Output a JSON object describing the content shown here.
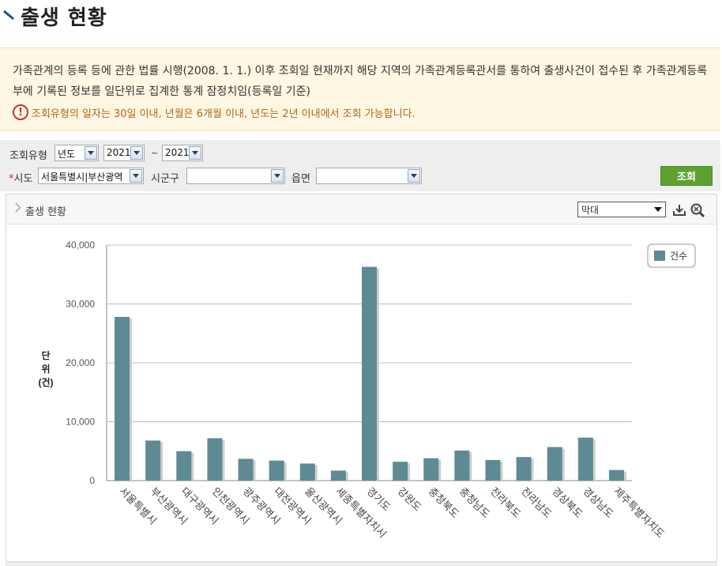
{
  "page": {
    "title": "출생 현황"
  },
  "notice": {
    "text": "가족관계의 등록 등에 관한 법률 시행(2008. 1. 1.) 이후 조회일 현재까지 해당 지역의 가족관계등록관서를 통하여 출생사건이 접수된 후 가족관계등록부에 기록된 정보를 일단위로 집계한 통계 잠정치임(등록일 기준)",
    "warn_icon": "!",
    "warning": "조회유형의 일자는 30일 이내, 년월은 6개월 이내, 년도는 2년 이내에서 조회 가능합니다."
  },
  "filter": {
    "query_type_label": "조회유형",
    "query_type_value": "년도",
    "year_from": "2021",
    "range_sep": "~",
    "year_to": "2021",
    "required_mark": "*",
    "sido_label": "시도",
    "sido_value": "서울특별시|부산광역",
    "sigungu_label": "시군구",
    "sigungu_value": "",
    "eupmyeon_label": "읍면",
    "eupmyeon_value": "",
    "search_button": "조회"
  },
  "panel": {
    "title": "출생 현황",
    "chart_type_value": "막대",
    "icons": [
      "download-icon",
      "zoom-icon"
    ]
  },
  "chart_data": {
    "type": "bar",
    "title": "",
    "ylabel": "단\n위\n(건)",
    "ylim": [
      0,
      40000
    ],
    "yticks": [
      0,
      10000,
      20000,
      30000,
      40000
    ],
    "ytick_labels": [
      "0",
      "10,000",
      "20,000",
      "30,000",
      "40,000"
    ],
    "grid": true,
    "legend_position": "top-right",
    "bar_color": "#5e8a93",
    "categories": [
      "서울특별시",
      "부산광역시",
      "대구광역시",
      "인천광역시",
      "광주광역시",
      "대전광역시",
      "울산광역시",
      "세종특별자치시",
      "경기도",
      "강원도",
      "충청북도",
      "충청남도",
      "전라북도",
      "전라남도",
      "경상북도",
      "경상남도",
      "제주특별자치도"
    ],
    "series": [
      {
        "name": "건수",
        "values": [
          27800,
          6800,
          5000,
          7200,
          3700,
          3400,
          2900,
          1700,
          36300,
          3200,
          3800,
          5100,
          3500,
          4000,
          5700,
          7300,
          1800
        ]
      }
    ]
  }
}
